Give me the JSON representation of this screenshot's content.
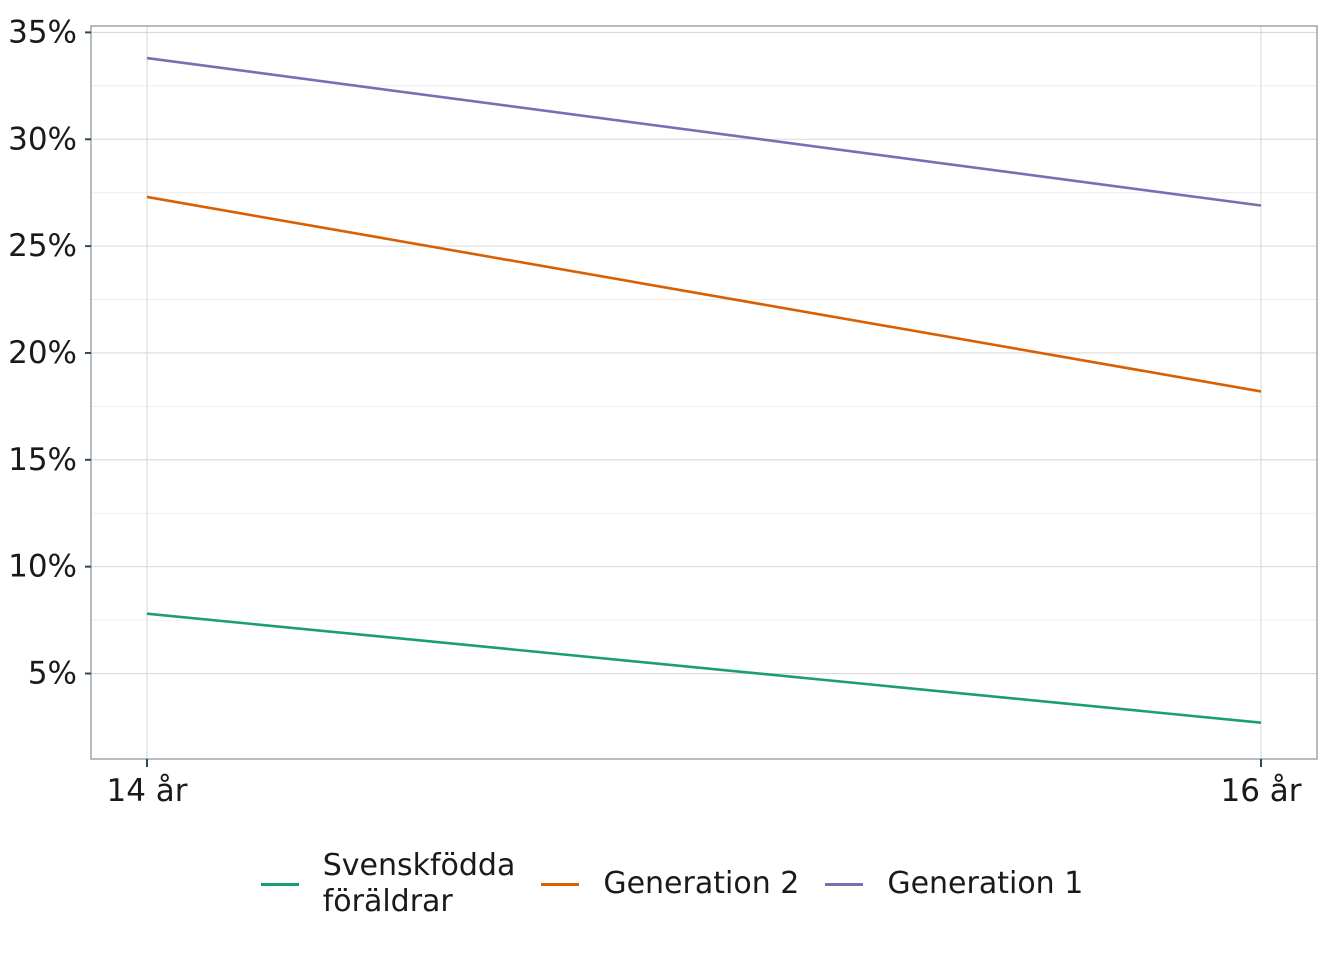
{
  "chart_data": {
    "type": "line",
    "x": [
      "14 år",
      "16 år"
    ],
    "series": [
      {
        "name": "Svenskfödda\nföräldrar",
        "values": [
          7.8,
          2.7
        ],
        "color": "#1b9e77"
      },
      {
        "name": "Generation 2",
        "values": [
          27.3,
          18.2
        ],
        "color": "#d95f02"
      },
      {
        "name": "Generation 1",
        "values": [
          33.8,
          26.9
        ],
        "color": "#7570b3"
      }
    ],
    "yticks": [
      5,
      10,
      15,
      20,
      25,
      30,
      35
    ],
    "ytick_labels": [
      "5%",
      "10%",
      "15%",
      "20%",
      "25%",
      "30%",
      "35%"
    ],
    "ylim": [
      1,
      35.3
    ],
    "grid": true,
    "legend_position": "bottom",
    "title": "",
    "xlabel": "",
    "ylabel": ""
  }
}
